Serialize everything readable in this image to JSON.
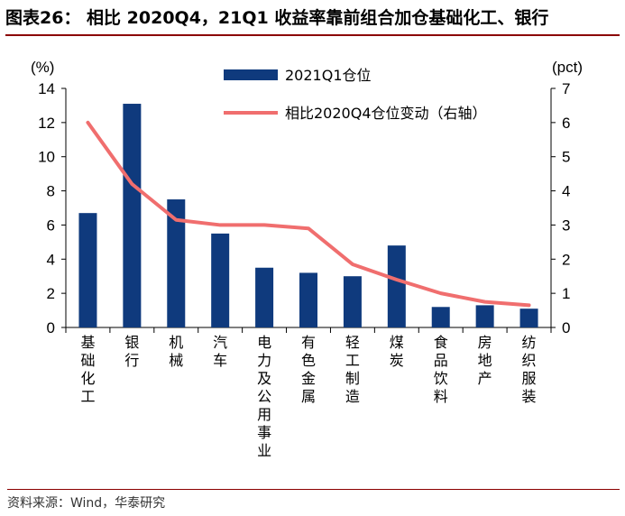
{
  "title": "图表26： 相比 2020Q4，21Q1 收益率靠前组合加仓基础化工、银行",
  "source": "资料来源：Wind，华泰研究",
  "chart_data": {
    "type": "bar",
    "categories": [
      "基础化工",
      "银行",
      "机械",
      "汽车",
      "电力及公用事业",
      "有色金属",
      "轻工制造",
      "煤炭",
      "食品饮料",
      "房地产",
      "纺织服装"
    ],
    "series": [
      {
        "name": "2021Q1仓位",
        "type": "bar",
        "axis": "left",
        "color": "#0f3a7d",
        "values": [
          6.7,
          13.1,
          7.5,
          5.5,
          3.5,
          3.2,
          3.0,
          4.8,
          1.2,
          1.3,
          1.1
        ]
      },
      {
        "name": "相比2020Q4仓位变动（右轴）",
        "type": "line",
        "axis": "right",
        "color": "#f06e6e",
        "values": [
          6.0,
          4.2,
          3.15,
          3.0,
          3.0,
          2.9,
          1.85,
          1.4,
          1.0,
          0.75,
          0.65
        ]
      }
    ],
    "y_left": {
      "unit": "(%)",
      "min": 0,
      "max": 14,
      "ticks": [
        0,
        2,
        4,
        6,
        8,
        10,
        12,
        14
      ]
    },
    "y_right": {
      "unit": "(pct)",
      "min": 0,
      "max": 7,
      "ticks": [
        0,
        1,
        2,
        3,
        4,
        5,
        6,
        7
      ]
    },
    "legend": "top-center",
    "grid": false
  }
}
